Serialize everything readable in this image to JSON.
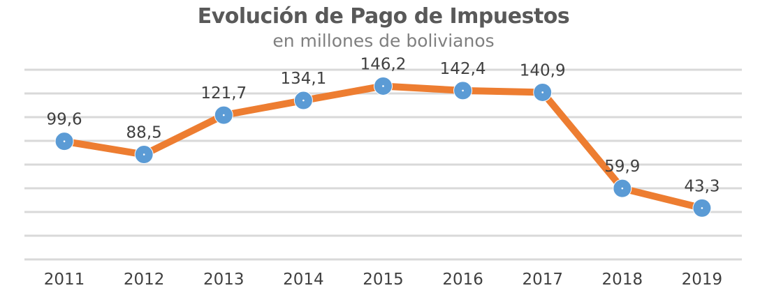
{
  "chart_data": {
    "type": "line",
    "title": "Evolución de Pago de Impuestos",
    "subtitle": "en millones de bolivianos",
    "categories": [
      "2011",
      "2012",
      "2013",
      "2014",
      "2015",
      "2016",
      "2017",
      "2018",
      "2019"
    ],
    "values": [
      99.6,
      88.5,
      121.7,
      134.1,
      146.2,
      142.4,
      140.9,
      59.9,
      43.3
    ],
    "value_labels": [
      "99,6",
      "88,5",
      "121,7",
      "134,1",
      "146,2",
      "142,4",
      "140,9",
      "59,9",
      "43,3"
    ],
    "xlabel": "",
    "ylabel": "",
    "ylim": [
      0,
      160
    ],
    "grid": true,
    "legend": "none",
    "colors": {
      "line": "#ED7D31",
      "marker": "#5B9BD5",
      "grid": "#D9D9D9"
    }
  }
}
